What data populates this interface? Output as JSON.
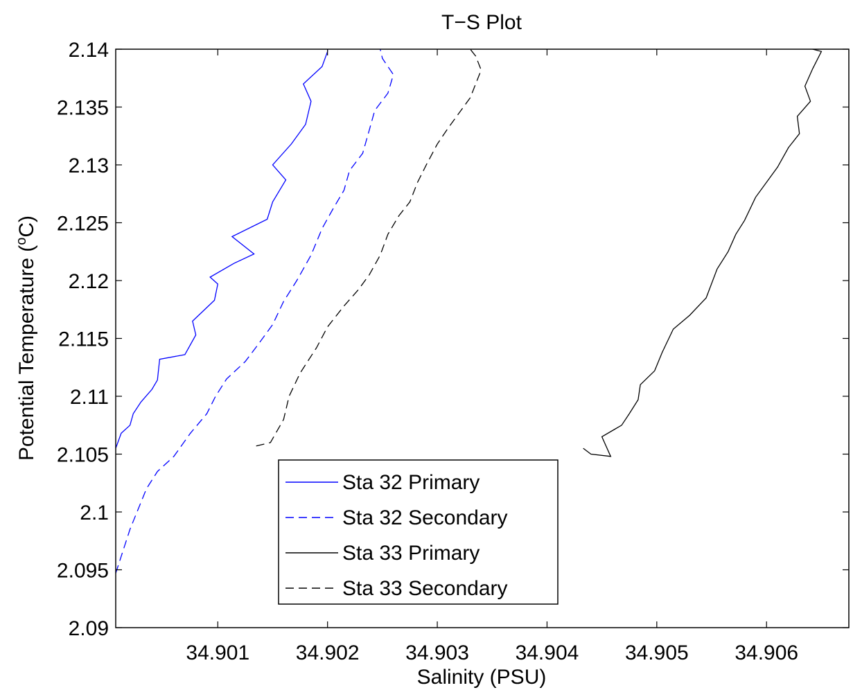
{
  "chart_data": {
    "type": "line",
    "title": "T−S Plot",
    "xlabel": "Salinity (PSU)",
    "ylabel_main": "Potential Temperature (",
    "ylabel_sup": "o",
    "ylabel_end": "C)",
    "xlim": [
      34.90007,
      34.90675
    ],
    "ylim": [
      2.09,
      2.14
    ],
    "xticks": [
      34.901,
      34.902,
      34.903,
      34.904,
      34.905,
      34.906
    ],
    "xtick_labels": [
      "34.901",
      "34.902",
      "34.903",
      "34.904",
      "34.905",
      "34.906"
    ],
    "yticks": [
      2.09,
      2.095,
      2.1,
      2.105,
      2.11,
      2.115,
      2.12,
      2.125,
      2.13,
      2.135,
      2.14
    ],
    "ytick_labels": [
      "2.09",
      "2.095",
      "2.1",
      "2.105",
      "2.11",
      "2.115",
      "2.12",
      "2.125",
      "2.13",
      "2.135",
      "2.14"
    ],
    "grid": false,
    "legend_position": "bottom-center",
    "series": [
      {
        "name": "Sta 32 Primary",
        "color": "#0000ff",
        "dash": "solid",
        "x": [
          34.90007,
          34.90012,
          34.9002,
          34.90023,
          34.9003,
          34.9004,
          34.90045,
          34.90047,
          34.9007,
          34.9008,
          34.90077,
          34.90097,
          34.901,
          34.90093,
          34.90115,
          34.90133,
          34.90113,
          34.90145,
          34.9015,
          34.90162,
          34.9015,
          34.90167,
          34.9018,
          34.90185,
          34.90178,
          34.90195,
          34.902,
          34.902
        ],
        "y": [
          2.1055,
          2.1068,
          2.1075,
          2.1085,
          2.1095,
          2.1106,
          2.1114,
          2.1132,
          2.1136,
          2.1153,
          2.1165,
          2.1183,
          2.1197,
          2.1203,
          2.1215,
          2.1223,
          2.1238,
          2.1253,
          2.1268,
          2.1287,
          2.13,
          2.1318,
          2.1335,
          2.1355,
          2.137,
          2.1385,
          2.1398,
          2.14
        ]
      },
      {
        "name": "Sta 32 Secondary",
        "color": "#0000ff",
        "dash": "dashed",
        "x": [
          34.90007,
          34.9002,
          34.90035,
          34.90045,
          34.9006,
          34.90075,
          34.9009,
          34.90098,
          34.90108,
          34.90125,
          34.90137,
          34.9015,
          34.9016,
          34.90172,
          34.90185,
          34.90195,
          34.90205,
          34.90215,
          34.9022,
          34.90232,
          34.90238,
          34.90243,
          34.90255,
          34.9026,
          34.9025,
          34.90248
        ],
        "y": [
          2.0947,
          2.0985,
          2.102,
          2.1035,
          2.1048,
          2.1068,
          2.1085,
          2.11,
          2.1115,
          2.113,
          2.1145,
          2.1162,
          2.1182,
          2.12,
          2.1222,
          2.1245,
          2.1262,
          2.1278,
          2.1295,
          2.131,
          2.133,
          2.1347,
          2.1362,
          2.1378,
          2.1392,
          2.14
        ]
      },
      {
        "name": "Sta 33 Primary",
        "color": "#000000",
        "dash": "solid",
        "x": [
          34.90433,
          34.9044,
          34.90458,
          34.9045,
          34.90468,
          34.90475,
          34.90483,
          34.90485,
          34.90498,
          34.90505,
          34.90515,
          34.9053,
          34.90545,
          34.90555,
          34.90565,
          34.90572,
          34.9058,
          34.9059,
          34.906,
          34.9061,
          34.9062,
          34.9063,
          34.90628,
          34.9064,
          34.90635,
          34.90642,
          34.9065,
          34.90642
        ],
        "y": [
          2.1055,
          2.105,
          2.1048,
          2.1065,
          2.1075,
          2.1085,
          2.1097,
          2.111,
          2.1122,
          2.1138,
          2.1158,
          2.117,
          2.1185,
          2.121,
          2.1225,
          2.124,
          2.1252,
          2.1272,
          2.1285,
          2.1298,
          2.1315,
          2.1327,
          2.1342,
          2.1355,
          2.1368,
          2.1383,
          2.1398,
          2.14
        ]
      },
      {
        "name": "Sta 33 Secondary",
        "color": "#000000",
        "dash": "dashed",
        "x": [
          34.90135,
          34.90148,
          34.9016,
          34.90165,
          34.90175,
          34.9019,
          34.902,
          34.90215,
          34.90228,
          34.90238,
          34.90248,
          34.90255,
          34.90265,
          34.90275,
          34.90282,
          34.9029,
          34.903,
          34.9031,
          34.9032,
          34.9033,
          34.90335,
          34.9034,
          34.90335,
          34.9033
        ],
        "y": [
          2.1057,
          2.106,
          2.108,
          2.11,
          2.112,
          2.1142,
          2.116,
          2.1178,
          2.1192,
          2.1205,
          2.1222,
          2.124,
          2.1256,
          2.1268,
          2.1285,
          2.13,
          2.1318,
          2.1332,
          2.1345,
          2.1358,
          2.137,
          2.1382,
          2.1394,
          2.14
        ]
      }
    ]
  }
}
